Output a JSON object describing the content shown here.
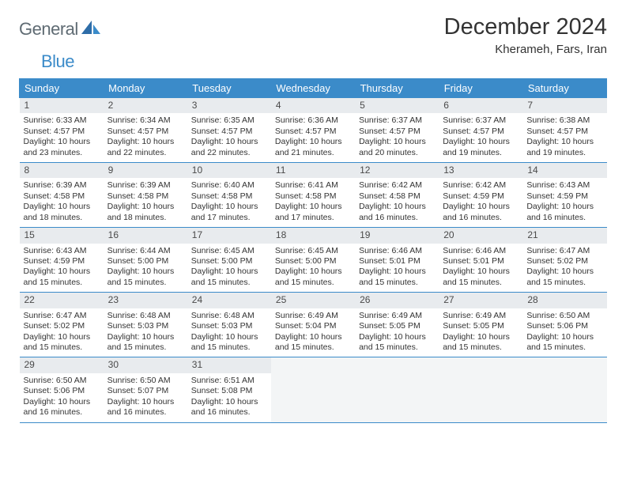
{
  "brand": {
    "general": "General",
    "blue": "Blue"
  },
  "title": "December 2024",
  "location": "Kherameh, Fars, Iran",
  "colors": {
    "accent": "#3b8bc9",
    "header_bg": "#3b8bc9",
    "header_text": "#ffffff",
    "daynum_bg": "#e8ebee",
    "empty_bg": "#f3f5f6",
    "text": "#333333",
    "logo_gray": "#5f6b73"
  },
  "day_headers": [
    "Sunday",
    "Monday",
    "Tuesday",
    "Wednesday",
    "Thursday",
    "Friday",
    "Saturday"
  ],
  "weeks": [
    [
      {
        "n": "1",
        "sr": "Sunrise: 6:33 AM",
        "ss": "Sunset: 4:57 PM",
        "dl": "Daylight: 10 hours and 23 minutes."
      },
      {
        "n": "2",
        "sr": "Sunrise: 6:34 AM",
        "ss": "Sunset: 4:57 PM",
        "dl": "Daylight: 10 hours and 22 minutes."
      },
      {
        "n": "3",
        "sr": "Sunrise: 6:35 AM",
        "ss": "Sunset: 4:57 PM",
        "dl": "Daylight: 10 hours and 22 minutes."
      },
      {
        "n": "4",
        "sr": "Sunrise: 6:36 AM",
        "ss": "Sunset: 4:57 PM",
        "dl": "Daylight: 10 hours and 21 minutes."
      },
      {
        "n": "5",
        "sr": "Sunrise: 6:37 AM",
        "ss": "Sunset: 4:57 PM",
        "dl": "Daylight: 10 hours and 20 minutes."
      },
      {
        "n": "6",
        "sr": "Sunrise: 6:37 AM",
        "ss": "Sunset: 4:57 PM",
        "dl": "Daylight: 10 hours and 19 minutes."
      },
      {
        "n": "7",
        "sr": "Sunrise: 6:38 AM",
        "ss": "Sunset: 4:57 PM",
        "dl": "Daylight: 10 hours and 19 minutes."
      }
    ],
    [
      {
        "n": "8",
        "sr": "Sunrise: 6:39 AM",
        "ss": "Sunset: 4:58 PM",
        "dl": "Daylight: 10 hours and 18 minutes."
      },
      {
        "n": "9",
        "sr": "Sunrise: 6:39 AM",
        "ss": "Sunset: 4:58 PM",
        "dl": "Daylight: 10 hours and 18 minutes."
      },
      {
        "n": "10",
        "sr": "Sunrise: 6:40 AM",
        "ss": "Sunset: 4:58 PM",
        "dl": "Daylight: 10 hours and 17 minutes."
      },
      {
        "n": "11",
        "sr": "Sunrise: 6:41 AM",
        "ss": "Sunset: 4:58 PM",
        "dl": "Daylight: 10 hours and 17 minutes."
      },
      {
        "n": "12",
        "sr": "Sunrise: 6:42 AM",
        "ss": "Sunset: 4:58 PM",
        "dl": "Daylight: 10 hours and 16 minutes."
      },
      {
        "n": "13",
        "sr": "Sunrise: 6:42 AM",
        "ss": "Sunset: 4:59 PM",
        "dl": "Daylight: 10 hours and 16 minutes."
      },
      {
        "n": "14",
        "sr": "Sunrise: 6:43 AM",
        "ss": "Sunset: 4:59 PM",
        "dl": "Daylight: 10 hours and 16 minutes."
      }
    ],
    [
      {
        "n": "15",
        "sr": "Sunrise: 6:43 AM",
        "ss": "Sunset: 4:59 PM",
        "dl": "Daylight: 10 hours and 15 minutes."
      },
      {
        "n": "16",
        "sr": "Sunrise: 6:44 AM",
        "ss": "Sunset: 5:00 PM",
        "dl": "Daylight: 10 hours and 15 minutes."
      },
      {
        "n": "17",
        "sr": "Sunrise: 6:45 AM",
        "ss": "Sunset: 5:00 PM",
        "dl": "Daylight: 10 hours and 15 minutes."
      },
      {
        "n": "18",
        "sr": "Sunrise: 6:45 AM",
        "ss": "Sunset: 5:00 PM",
        "dl": "Daylight: 10 hours and 15 minutes."
      },
      {
        "n": "19",
        "sr": "Sunrise: 6:46 AM",
        "ss": "Sunset: 5:01 PM",
        "dl": "Daylight: 10 hours and 15 minutes."
      },
      {
        "n": "20",
        "sr": "Sunrise: 6:46 AM",
        "ss": "Sunset: 5:01 PM",
        "dl": "Daylight: 10 hours and 15 minutes."
      },
      {
        "n": "21",
        "sr": "Sunrise: 6:47 AM",
        "ss": "Sunset: 5:02 PM",
        "dl": "Daylight: 10 hours and 15 minutes."
      }
    ],
    [
      {
        "n": "22",
        "sr": "Sunrise: 6:47 AM",
        "ss": "Sunset: 5:02 PM",
        "dl": "Daylight: 10 hours and 15 minutes."
      },
      {
        "n": "23",
        "sr": "Sunrise: 6:48 AM",
        "ss": "Sunset: 5:03 PM",
        "dl": "Daylight: 10 hours and 15 minutes."
      },
      {
        "n": "24",
        "sr": "Sunrise: 6:48 AM",
        "ss": "Sunset: 5:03 PM",
        "dl": "Daylight: 10 hours and 15 minutes."
      },
      {
        "n": "25",
        "sr": "Sunrise: 6:49 AM",
        "ss": "Sunset: 5:04 PM",
        "dl": "Daylight: 10 hours and 15 minutes."
      },
      {
        "n": "26",
        "sr": "Sunrise: 6:49 AM",
        "ss": "Sunset: 5:05 PM",
        "dl": "Daylight: 10 hours and 15 minutes."
      },
      {
        "n": "27",
        "sr": "Sunrise: 6:49 AM",
        "ss": "Sunset: 5:05 PM",
        "dl": "Daylight: 10 hours and 15 minutes."
      },
      {
        "n": "28",
        "sr": "Sunrise: 6:50 AM",
        "ss": "Sunset: 5:06 PM",
        "dl": "Daylight: 10 hours and 15 minutes."
      }
    ],
    [
      {
        "n": "29",
        "sr": "Sunrise: 6:50 AM",
        "ss": "Sunset: 5:06 PM",
        "dl": "Daylight: 10 hours and 16 minutes."
      },
      {
        "n": "30",
        "sr": "Sunrise: 6:50 AM",
        "ss": "Sunset: 5:07 PM",
        "dl": "Daylight: 10 hours and 16 minutes."
      },
      {
        "n": "31",
        "sr": "Sunrise: 6:51 AM",
        "ss": "Sunset: 5:08 PM",
        "dl": "Daylight: 10 hours and 16 minutes."
      },
      null,
      null,
      null,
      null
    ]
  ]
}
